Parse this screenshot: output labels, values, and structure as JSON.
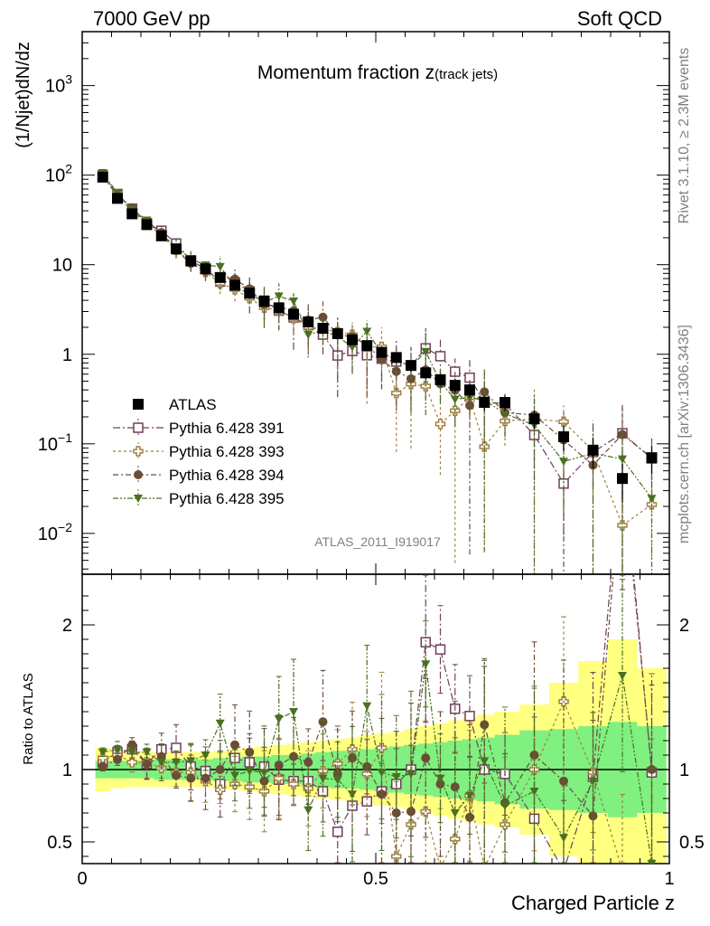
{
  "header": {
    "left_label": "7000 GeV pp",
    "right_label": "Soft QCD"
  },
  "side_labels": {
    "rivet": "Rivet 3.1.10, ≥ 2.3M events",
    "mcplots": "mcplots.cern.ch [arXiv:1306.3436]"
  },
  "chart_data": {
    "type": "scatter",
    "title_main": "Momentum fraction",
    "title_var": "z",
    "title_sub": "(track jets)",
    "analysis_label": "ATLAS_2011_I919017",
    "ylabel": "(1/Njet)dN/dz",
    "xlabel": "Charged Particle z",
    "ratio_ylabel": "Ratio to ATLAS",
    "xlim": [
      0,
      1
    ],
    "ylim": [
      0.0035,
      4000
    ],
    "yscale": "log",
    "ratio_ylim": [
      0.35,
      2.35
    ],
    "x_ticks": [
      "0",
      "0.5",
      "1"
    ],
    "y_ticks": [
      {
        "v": 0.01,
        "base": "10",
        "exp": "−2"
      },
      {
        "v": 0.1,
        "base": "10",
        "exp": "−1"
      },
      {
        "v": 1,
        "base": "1",
        "exp": ""
      },
      {
        "v": 10,
        "base": "10",
        "exp": ""
      },
      {
        "v": 100,
        "base": "10",
        "exp": "2"
      },
      {
        "v": 1000,
        "base": "10",
        "exp": "3"
      }
    ],
    "ratio_ticks": [
      "0.5",
      "1",
      "2"
    ],
    "legend_position": "bottom-left",
    "x": [
      0.035,
      0.06,
      0.085,
      0.11,
      0.135,
      0.16,
      0.185,
      0.21,
      0.235,
      0.26,
      0.285,
      0.31,
      0.335,
      0.36,
      0.385,
      0.41,
      0.435,
      0.46,
      0.485,
      0.51,
      0.535,
      0.56,
      0.585,
      0.61,
      0.635,
      0.66,
      0.685,
      0.72,
      0.77,
      0.82,
      0.87,
      0.92,
      0.97
    ],
    "data": {
      "name": "ATLAS",
      "values": [
        95,
        55,
        37,
        28,
        21,
        15,
        11,
        9,
        7.2,
        5.9,
        4.8,
        3.9,
        3.3,
        2.8,
        2.3,
        1.95,
        1.7,
        1.45,
        1.25,
        1.05,
        0.92,
        0.75,
        0.62,
        0.52,
        0.45,
        0.4,
        0.29,
        0.29,
        0.19,
        0.12,
        0.085,
        0.041,
        0.07
      ],
      "ratio_band_inner": [
        0.06,
        0.06,
        0.06,
        0.06,
        0.07,
        0.07,
        0.07,
        0.07,
        0.08,
        0.08,
        0.09,
        0.09,
        0.1,
        0.1,
        0.11,
        0.12,
        0.13,
        0.13,
        0.14,
        0.15,
        0.16,
        0.17,
        0.18,
        0.19,
        0.2,
        0.21,
        0.22,
        0.24,
        0.27,
        0.28,
        0.3,
        0.33,
        0.3
      ],
      "ratio_band_outer": [
        0.15,
        0.13,
        0.12,
        0.12,
        0.12,
        0.12,
        0.12,
        0.12,
        0.13,
        0.14,
        0.15,
        0.16,
        0.17,
        0.18,
        0.19,
        0.2,
        0.21,
        0.22,
        0.24,
        0.25,
        0.26,
        0.28,
        0.3,
        0.32,
        0.34,
        0.36,
        0.38,
        0.4,
        0.45,
        0.6,
        0.75,
        0.9,
        0.7
      ]
    },
    "series": [
      {
        "name": "Pythia 6.428 391",
        "color": "#703f5a",
        "marker": "open-square",
        "ratio": [
          1.05,
          1.12,
          1.14,
          1.04,
          1.14,
          1.15,
          1.02,
          0.99,
          0.9,
          1.08,
          1.05,
          1.02,
          0.93,
          0.92,
          0.92,
          0.85,
          0.57,
          0.75,
          0.78,
          0.85,
          0.9,
          1.0,
          1.88,
          1.83,
          1.42,
          1.37,
          1.0,
          0.97,
          0.66,
          0.3,
          0.95,
          3.2,
          0.98
        ]
      },
      {
        "name": "Pythia 6.428 393",
        "color": "#a08040",
        "marker": "open-cross",
        "ratio": [
          1.08,
          1.1,
          1.05,
          1.05,
          1.01,
          0.98,
          0.98,
          0.92,
          0.86,
          0.9,
          0.88,
          0.85,
          0.94,
          0.9,
          0.87,
          0.99,
          1.04,
          1.14,
          0.97,
          1.15,
          0.4,
          0.62,
          0.71,
          0.32,
          0.52,
          0.82,
          0.32,
          0.62,
          1.0,
          1.47,
          0.98,
          0.3,
          0.3
        ]
      },
      {
        "name": "Pythia 6.428 394",
        "color": "#6b4c36",
        "marker": "filled-circle",
        "ratio": [
          1.02,
          1.07,
          1.17,
          1.04,
          1.09,
          0.96,
          0.94,
          0.94,
          1.0,
          1.17,
          1.12,
          0.92,
          1.03,
          1.09,
          1.05,
          1.33,
          0.97,
          1.08,
          1.02,
          0.83,
          0.7,
          0.71,
          1.08,
          0.9,
          0.88,
          0.67,
          1.31,
          0.77,
          1.1,
          0.92,
          0.68,
          3.1,
          1.0
        ]
      },
      {
        "name": "Pythia 6.428 395",
        "color": "#4a7020",
        "marker": "filled-triangle-down",
        "ratio": [
          1.12,
          1.14,
          1.12,
          1.12,
          1.05,
          1.05,
          1.06,
          1.1,
          1.32,
          0.96,
          0.99,
          0.98,
          1.35,
          1.4,
          0.72,
          0.94,
          0.93,
          0.83,
          1.44,
          0.98,
          0.95,
          0.97,
          1.73,
          0.94,
          0.7,
          0.82,
          1.06,
          0.75,
          0.85,
          0.53,
          0.92,
          1.65,
          0.35
        ]
      }
    ]
  }
}
